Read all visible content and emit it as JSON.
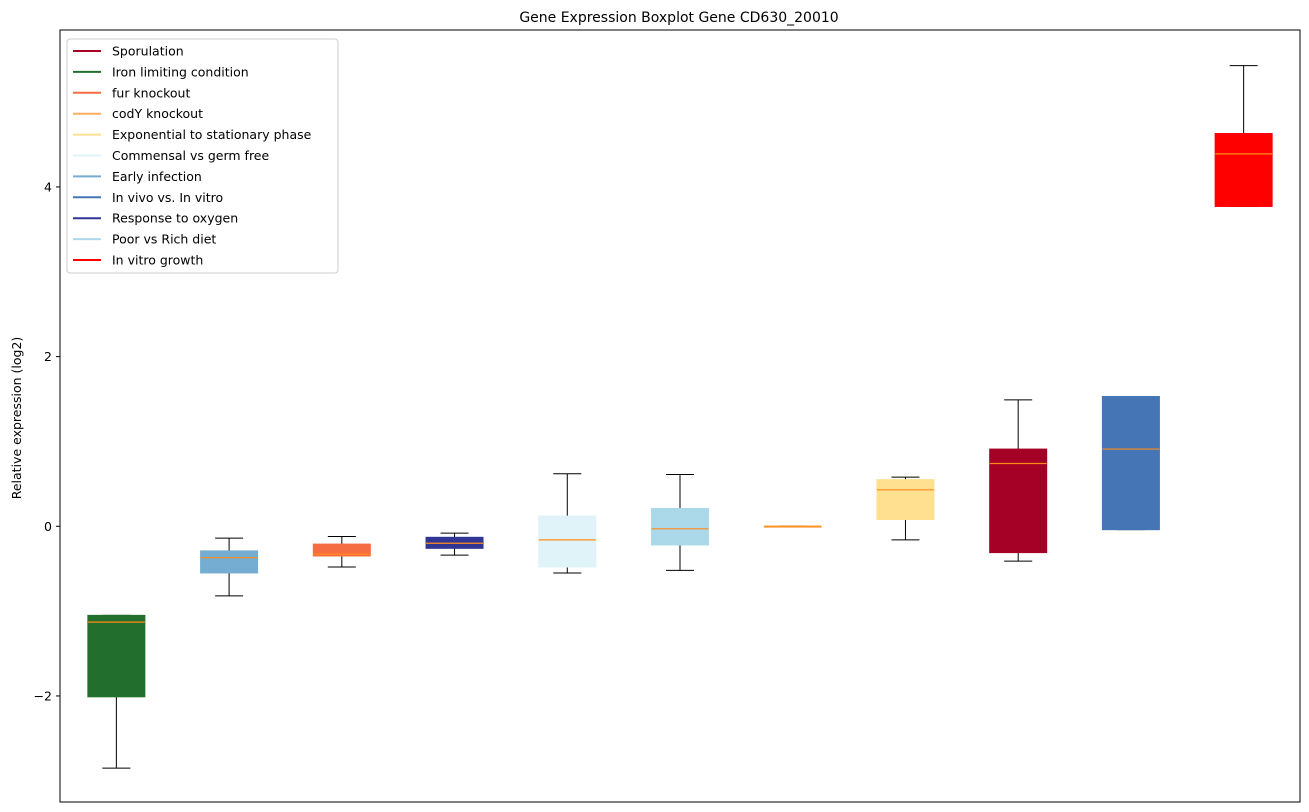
{
  "chart_data": {
    "type": "boxplot",
    "title": "Gene Expression Boxplot Gene CD630_20010",
    "xlabel": "",
    "ylabel": "Relative expression (log2)",
    "ylim": [
      -3.25,
      5.85
    ],
    "yticks": [
      -2,
      0,
      2,
      4
    ],
    "ytick_labels": [
      "−2",
      "0",
      "2",
      "4"
    ],
    "xticks": [],
    "grid": false,
    "legend_position": "upper left",
    "legend": [
      {
        "label": "Sporulation",
        "color": "#a50026"
      },
      {
        "label": "Iron limiting condition",
        "color": "#226e2c"
      },
      {
        "label": "fur knockout",
        "color": "#f46d43"
      },
      {
        "label": "codY knockout",
        "color": "#fdae61"
      },
      {
        "label": "Exponential to stationary phase",
        "color": "#fee090"
      },
      {
        "label": "Commensal vs germ free",
        "color": "#e0f3f8"
      },
      {
        "label": "Early infection",
        "color": "#74add1"
      },
      {
        "label": "In vivo vs. In vitro",
        "color": "#4575b4"
      },
      {
        "label": "Response to oxygen",
        "color": "#313695"
      },
      {
        "label": "Poor vs Rich diet",
        "color": "#abd9e9"
      },
      {
        "label": "In vitro growth",
        "color": "#ff0000"
      }
    ],
    "boxes": [
      {
        "group": "Iron limiting condition",
        "color": "#226e2c",
        "whislo": -2.85,
        "q1": -2.01,
        "med": -1.13,
        "q3": -1.05,
        "whishi": -1.05
      },
      {
        "group": "Early infection",
        "color": "#74add1",
        "whislo": -0.82,
        "q1": -0.55,
        "med": -0.37,
        "q3": -0.29,
        "whishi": -0.14
      },
      {
        "group": "fur knockout",
        "color": "#f46d43",
        "whislo": -0.48,
        "q1": -0.35,
        "med": -0.33,
        "q3": -0.21,
        "whishi": -0.12
      },
      {
        "group": "Response to oxygen",
        "color": "#313695",
        "whislo": -0.34,
        "q1": -0.26,
        "med": -0.2,
        "q3": -0.13,
        "whishi": -0.08
      },
      {
        "group": "Commensal vs germ free",
        "color": "#e0f3f8",
        "whislo": -0.55,
        "q1": -0.48,
        "med": -0.16,
        "q3": 0.12,
        "whishi": 0.62
      },
      {
        "group": "Poor vs Rich diet",
        "color": "#abd9e9",
        "whislo": -0.52,
        "q1": -0.22,
        "med": -0.03,
        "q3": 0.21,
        "whishi": 0.61
      },
      {
        "group": "codY knockout",
        "color": "#fdae61",
        "whislo": 0.0,
        "q1": 0.0,
        "med": 0.0,
        "q3": 0.0,
        "whishi": 0.0
      },
      {
        "group": "Exponential to stationary phase",
        "color": "#fee090",
        "whislo": -0.16,
        "q1": 0.08,
        "med": 0.43,
        "q3": 0.55,
        "whishi": 0.58
      },
      {
        "group": "Sporulation",
        "color": "#a50026",
        "whislo": -0.41,
        "q1": -0.31,
        "med": 0.74,
        "q3": 0.91,
        "whishi": 1.49
      },
      {
        "group": "In vivo vs. In vitro",
        "color": "#4575b4",
        "whislo": -0.04,
        "q1": -0.04,
        "med": 0.91,
        "q3": 1.53,
        "whishi": 1.53
      },
      {
        "group": "In vitro growth",
        "color": "#ff0000",
        "whislo": 3.77,
        "q1": 3.77,
        "med": 4.39,
        "q3": 4.63,
        "whishi": 5.43
      }
    ],
    "median_color": "#ff8c1a"
  }
}
